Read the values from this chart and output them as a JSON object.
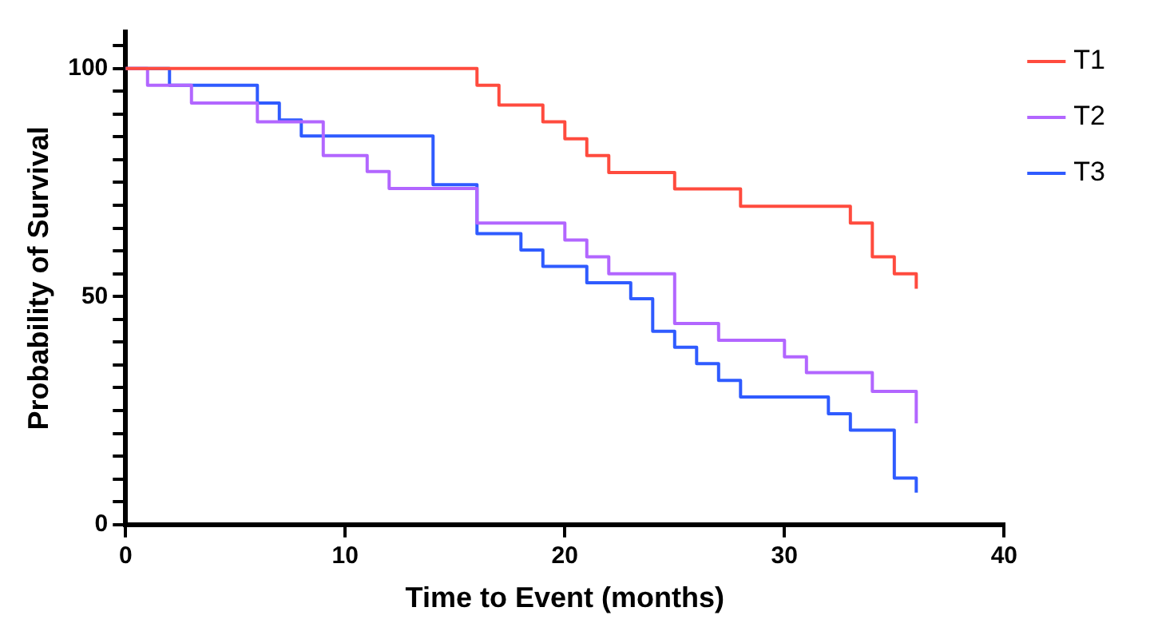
{
  "chart_data": {
    "type": "step",
    "xlabel": "Time to Event (months)",
    "ylabel": "Probability of Survival",
    "xlim": [
      0,
      40
    ],
    "xticks": [
      0,
      10,
      20,
      30,
      40
    ],
    "ylim": [
      0,
      108
    ],
    "yticks": [
      0,
      {
        "value": 5,
        "label": null
      },
      {
        "value": 10,
        "label": null
      },
      {
        "value": 15,
        "label": null
      },
      {
        "value": 20,
        "label": null
      },
      {
        "value": 25,
        "label": null
      },
      {
        "value": 30,
        "label": null
      },
      {
        "value": 35,
        "label": null
      },
      {
        "value": 40,
        "label": null
      },
      {
        "value": 45,
        "label": null
      },
      50,
      {
        "value": 55,
        "label": null
      },
      {
        "value": 60,
        "label": null
      },
      {
        "value": 65,
        "label": null
      },
      {
        "value": 70,
        "label": null
      },
      {
        "value": 75,
        "label": null
      },
      {
        "value": 80,
        "label": null
      },
      {
        "value": 85,
        "label": null
      },
      {
        "value": 90,
        "label": null
      },
      {
        "value": 95,
        "label": null
      },
      100,
      {
        "value": 105,
        "label": null
      }
    ],
    "grid": false,
    "legend": "top right",
    "line_style": "solid",
    "series": [
      {
        "name": "T1",
        "color": "#ff4b3e",
        "x": [
          0,
          16,
          17,
          19,
          20,
          21,
          22,
          25,
          28,
          33,
          34,
          35,
          36
        ],
        "values": [
          100,
          96.3,
          92.0,
          88.3,
          84.6,
          80.9,
          77.2,
          73.6,
          69.8,
          66.1,
          58.7,
          55.0,
          51.7
        ]
      },
      {
        "name": "T2",
        "color": "#b266ff",
        "x": [
          0,
          1,
          3,
          6,
          9,
          11,
          12,
          16,
          20,
          21,
          22,
          25,
          27,
          30,
          31,
          34,
          36
        ],
        "values": [
          100,
          96.3,
          92.4,
          88.3,
          80.9,
          77.4,
          73.7,
          66.1,
          62.4,
          58.7,
          55.0,
          44.1,
          40.4,
          36.8,
          33.3,
          29.2,
          22.2
        ]
      },
      {
        "name": "T3",
        "color": "#2f5bff",
        "x": [
          0,
          2,
          6,
          7,
          8,
          14,
          16,
          18,
          19,
          21,
          23,
          24,
          25,
          26,
          27,
          28,
          32,
          33,
          35,
          36
        ],
        "values": [
          100,
          96.3,
          92.4,
          88.7,
          85.2,
          74.5,
          63.8,
          60.2,
          56.6,
          53.0,
          49.5,
          42.4,
          38.9,
          35.3,
          31.6,
          28.0,
          24.3,
          20.7,
          10.2,
          7.0
        ]
      }
    ]
  }
}
